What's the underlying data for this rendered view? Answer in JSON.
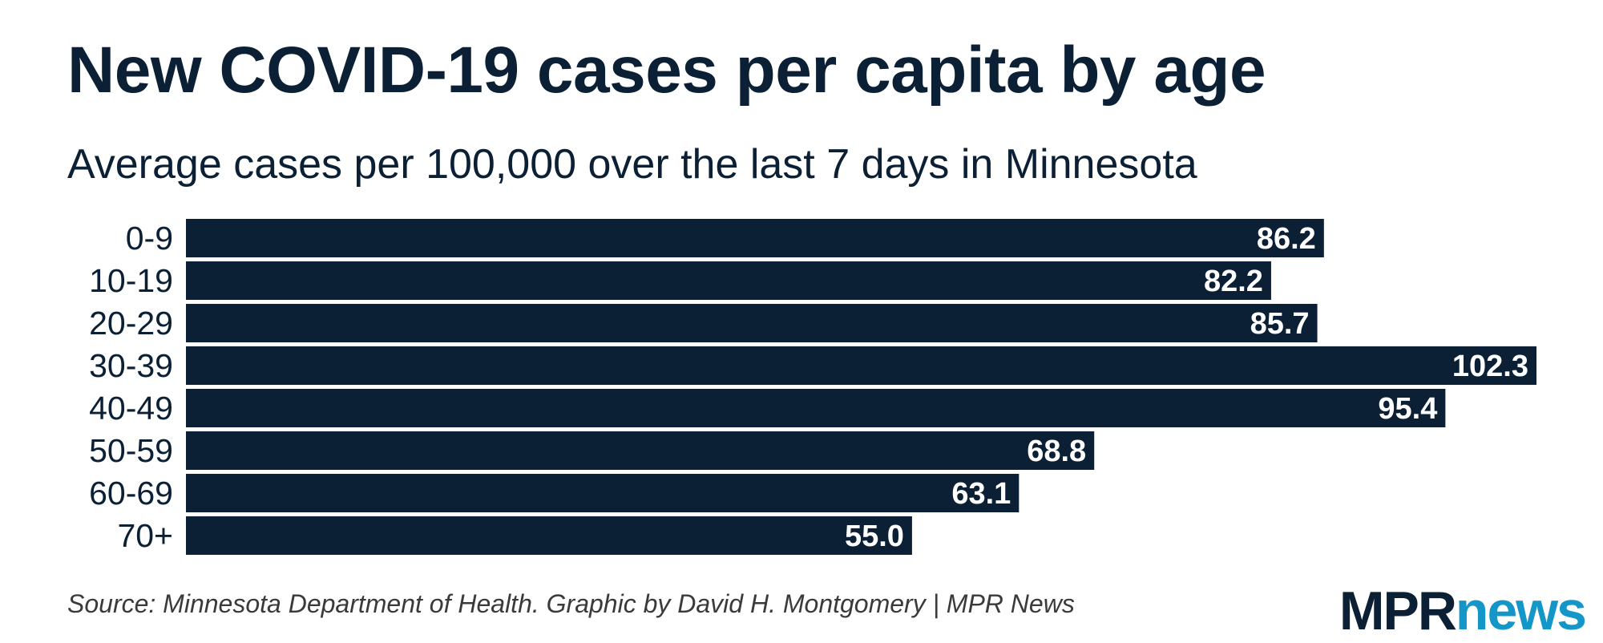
{
  "title": "New COVID-19 cases per capita by age",
  "subtitle": "Average cases per 100,000 over the last 7 days in Minnesota",
  "source": "Source: Minnesota Department of Health. Graphic by David H. Montgomery | MPR News",
  "logo": {
    "part1": "MPR",
    "part2": "news"
  },
  "colors": {
    "bar": "#0b2035",
    "bar_label": "#ffffff",
    "text": "#0b2035",
    "logo_news": "#1496c8"
  },
  "chart_data": {
    "type": "bar",
    "orientation": "horizontal",
    "categories": [
      "0-9",
      "10-19",
      "20-29",
      "30-39",
      "40-49",
      "50-59",
      "60-69",
      "70+"
    ],
    "values": [
      86.2,
      82.2,
      85.7,
      102.3,
      95.4,
      68.8,
      63.1,
      55.0
    ],
    "value_labels": [
      "86.2",
      "82.2",
      "85.7",
      "102.3",
      "95.4",
      "68.8",
      "63.1",
      "55.0"
    ],
    "xlim": [
      0,
      102.3
    ],
    "grid": false,
    "legend": "none"
  }
}
